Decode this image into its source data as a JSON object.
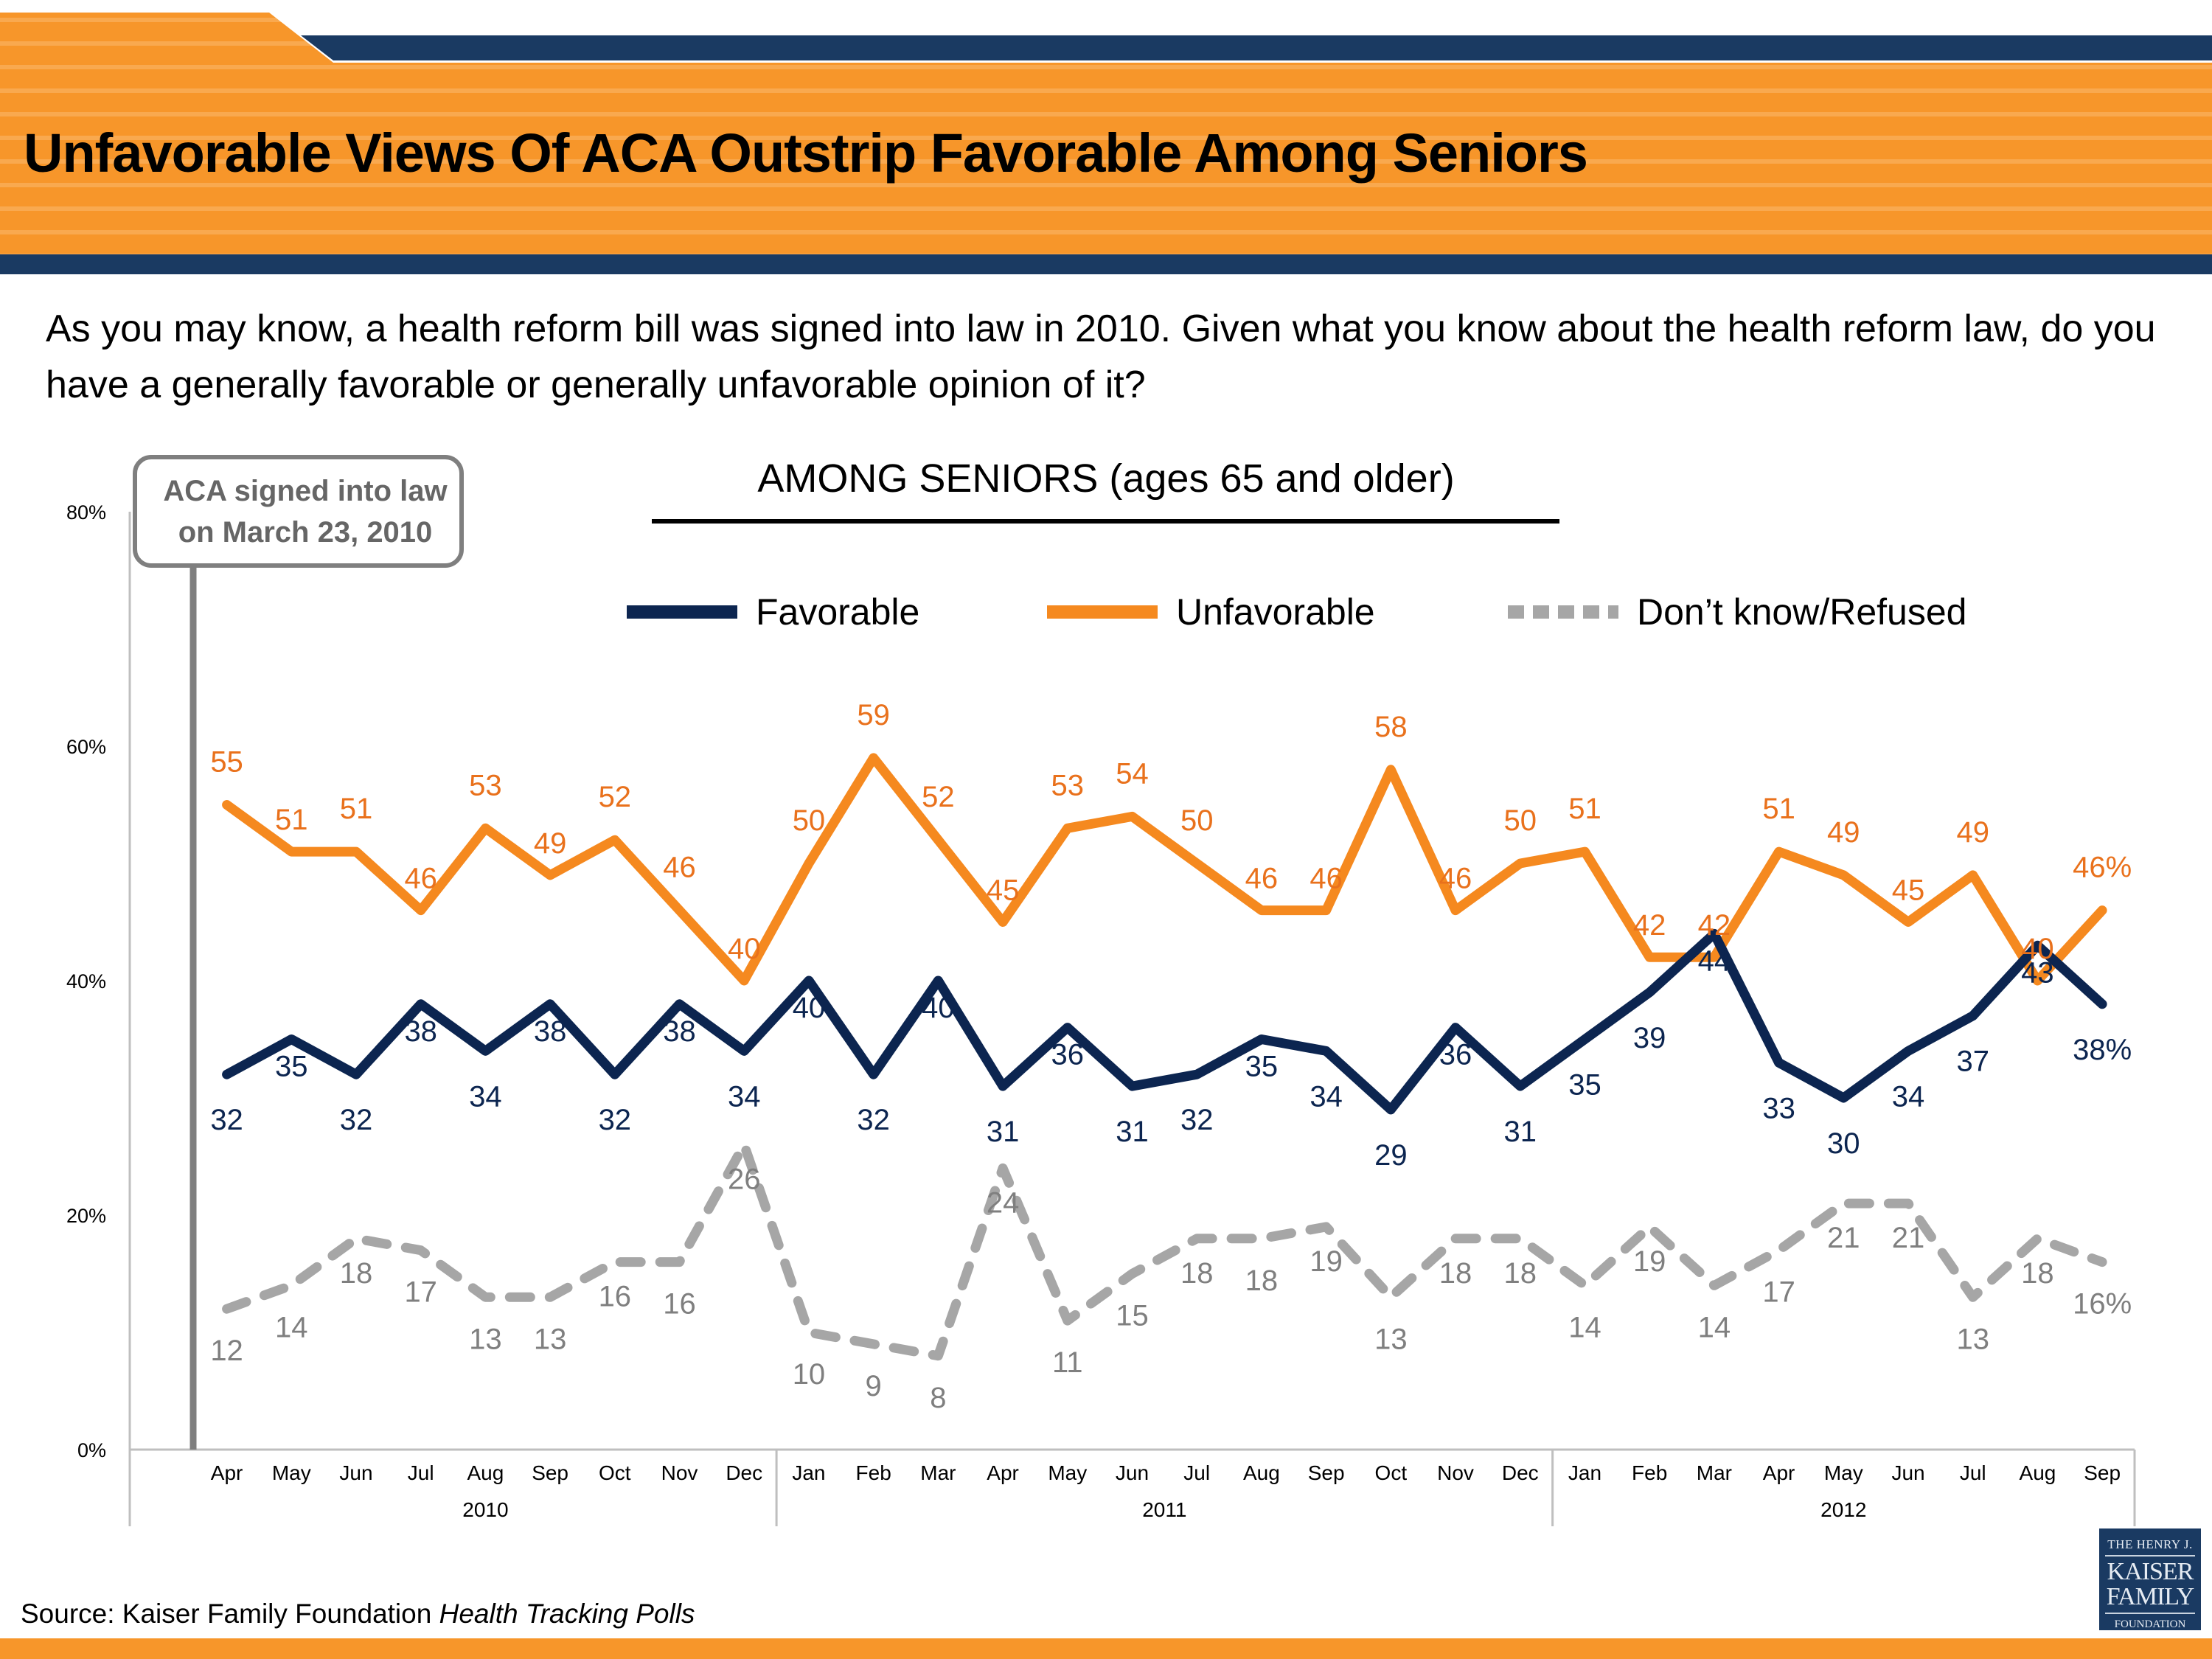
{
  "header": {
    "title": "Unfavorable Views Of ACA Outstrip Favorable Among Seniors"
  },
  "question": "As you may know, a health reform bill was signed into law in 2010. Given what you know about the health reform law, do you have a generally favorable or generally unfavorable opinion of it?",
  "annotation": {
    "line1": "ACA signed into law",
    "line2": "on March 23, 2010"
  },
  "source": {
    "prefix": "Source: Kaiser Family Foundation ",
    "italic": "Health Tracking Polls"
  },
  "logo": {
    "line1": "THE HENRY J.",
    "line2": "KAISER",
    "line3": "FAMILY",
    "line4": "FOUNDATION"
  },
  "colors": {
    "banner_orange": "#f7962a",
    "banner_navy": "#1a3a62",
    "favorable": "#0c2550",
    "unfavorable": "#f5891f",
    "unfavorable_label": "#e9711c",
    "dont_know": "#a6a6a6",
    "dont_know_label": "#7f7f7f",
    "annotation": "#7f7f7f"
  },
  "chart_data": {
    "type": "line",
    "title": "AMONG SENIORS (ages 65 and older)",
    "xlabel": "",
    "ylabel": "",
    "ylim": [
      0,
      80
    ],
    "yticks": [
      "0%",
      "20%",
      "40%",
      "60%",
      "80%"
    ],
    "ytick_values": [
      0,
      20,
      40,
      60,
      80
    ],
    "grid": false,
    "legend_position": "top",
    "x": [
      "Apr",
      "May",
      "Jun",
      "Jul",
      "Aug",
      "Sep",
      "Oct",
      "Nov",
      "Dec",
      "Jan",
      "Feb",
      "Mar",
      "Apr",
      "May",
      "Jun",
      "Jul",
      "Aug",
      "Sep",
      "Oct",
      "Nov",
      "Dec",
      "Jan",
      "Feb",
      "Mar",
      "Apr",
      "May",
      "Jun",
      "Jul",
      "Aug",
      "Sep"
    ],
    "year_groups": [
      {
        "label": "2010",
        "count": 9
      },
      {
        "label": "2011",
        "count": 12
      },
      {
        "label": "2012",
        "count": 9
      }
    ],
    "series": [
      {
        "name": "Favorable",
        "style": "solid",
        "values": [
          32,
          35,
          32,
          38,
          34,
          38,
          32,
          38,
          34,
          40,
          32,
          40,
          31,
          36,
          31,
          32,
          35,
          34,
          29,
          36,
          31,
          35,
          39,
          44,
          33,
          30,
          34,
          37,
          43,
          38
        ],
        "last_label_suffix": "%"
      },
      {
        "name": "Unfavorable",
        "style": "solid",
        "values": [
          55,
          51,
          51,
          46,
          53,
          49,
          52,
          46,
          40,
          50,
          59,
          52,
          45,
          53,
          54,
          50,
          46,
          46,
          58,
          46,
          50,
          51,
          42,
          42,
          51,
          49,
          45,
          49,
          40,
          46
        ],
        "last_label_suffix": "%"
      },
      {
        "name": "Don’t know/Refused",
        "style": "dashed",
        "values": [
          12,
          14,
          18,
          17,
          13,
          13,
          16,
          16,
          26,
          10,
          9,
          8,
          24,
          11,
          15,
          18,
          18,
          19,
          13,
          18,
          18,
          14,
          19,
          14,
          17,
          21,
          21,
          13,
          18,
          16
        ],
        "last_label_suffix": "%"
      }
    ],
    "annotations": [
      {
        "text": "ACA signed into law on March 23, 2010",
        "position": "before first data point"
      }
    ]
  }
}
